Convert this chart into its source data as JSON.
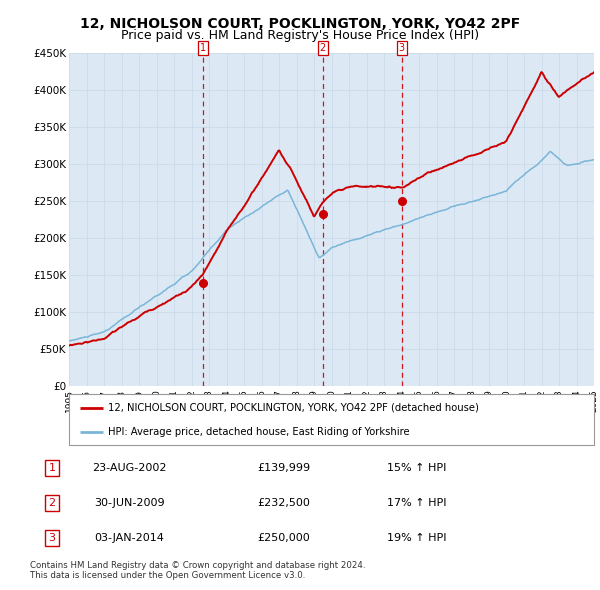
{
  "title_line1": "12, NICHOLSON COURT, POCKLINGTON, YORK, YO42 2PF",
  "title_line2": "Price paid vs. HM Land Registry's House Price Index (HPI)",
  "ylabel_ticks": [
    "£0",
    "£50K",
    "£100K",
    "£150K",
    "£200K",
    "£250K",
    "£300K",
    "£350K",
    "£400K",
    "£450K"
  ],
  "ytick_values": [
    0,
    50000,
    100000,
    150000,
    200000,
    250000,
    300000,
    350000,
    400000,
    450000
  ],
  "x_start_year": 1995,
  "x_end_year": 2025,
  "sale_points": [
    {
      "label": "1",
      "date_str": "23-AUG-2002",
      "year": 2002.64,
      "price": 139999
    },
    {
      "label": "2",
      "date_str": "30-JUN-2009",
      "year": 2009.5,
      "price": 232500
    },
    {
      "label": "3",
      "date_str": "03-JAN-2014",
      "year": 2014.01,
      "price": 250000
    }
  ],
  "hpi_color": "#7ab5d8",
  "price_color": "#cc0000",
  "grid_color": "#c8d8e8",
  "bg_color": "#dce9f5",
  "legend_label_price": "12, NICHOLSON COURT, POCKLINGTON, YORK, YO42 2PF (detached house)",
  "legend_label_hpi": "HPI: Average price, detached house, East Riding of Yorkshire",
  "table_rows": [
    [
      "1",
      "23-AUG-2002",
      "£139,999",
      "15% ↑ HPI"
    ],
    [
      "2",
      "30-JUN-2009",
      "£232,500",
      "17% ↑ HPI"
    ],
    [
      "3",
      "03-JAN-2014",
      "£250,000",
      "19% ↑ HPI"
    ]
  ],
  "footer_text": "Contains HM Land Registry data © Crown copyright and database right 2024.\nThis data is licensed under the Open Government Licence v3.0.",
  "title_fontsize": 10,
  "subtitle_fontsize": 9
}
